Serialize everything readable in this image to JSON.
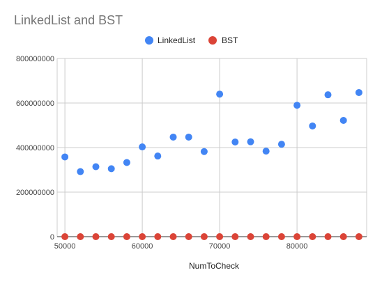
{
  "chart_data": {
    "type": "scatter",
    "title": "LinkedList and BST",
    "xlabel": "NumToCheck",
    "ylabel": "",
    "xlim": [
      49000,
      89000
    ],
    "ylim": [
      0,
      800000000
    ],
    "x_ticks": [
      50000,
      60000,
      70000,
      80000
    ],
    "y_ticks": [
      0,
      200000000,
      400000000,
      600000000,
      800000000
    ],
    "grid": true,
    "legend_position": "top",
    "series": [
      {
        "name": "LinkedList",
        "color": "#4285f4",
        "points": [
          [
            50000,
            358000000
          ],
          [
            52000,
            292000000
          ],
          [
            54000,
            314000000
          ],
          [
            56000,
            305000000
          ],
          [
            58000,
            333000000
          ],
          [
            60000,
            403000000
          ],
          [
            62000,
            362000000
          ],
          [
            64000,
            447000000
          ],
          [
            66000,
            447000000
          ],
          [
            68000,
            382000000
          ],
          [
            70000,
            640000000
          ],
          [
            72000,
            425000000
          ],
          [
            74000,
            426000000
          ],
          [
            76000,
            384000000
          ],
          [
            78000,
            415000000
          ],
          [
            80000,
            590000000
          ],
          [
            82000,
            497000000
          ],
          [
            84000,
            637000000
          ],
          [
            86000,
            522000000
          ],
          [
            88000,
            647000000
          ]
        ]
      },
      {
        "name": "BST",
        "color": "#db4437",
        "points": [
          [
            50000,
            0
          ],
          [
            52000,
            0
          ],
          [
            54000,
            0
          ],
          [
            56000,
            0
          ],
          [
            58000,
            0
          ],
          [
            60000,
            0
          ],
          [
            62000,
            0
          ],
          [
            64000,
            0
          ],
          [
            66000,
            0
          ],
          [
            68000,
            0
          ],
          [
            70000,
            0
          ],
          [
            72000,
            0
          ],
          [
            74000,
            0
          ],
          [
            76000,
            0
          ],
          [
            78000,
            0
          ],
          [
            80000,
            0
          ],
          [
            82000,
            0
          ],
          [
            84000,
            0
          ],
          [
            86000,
            0
          ],
          [
            88000,
            0
          ]
        ]
      }
    ]
  }
}
